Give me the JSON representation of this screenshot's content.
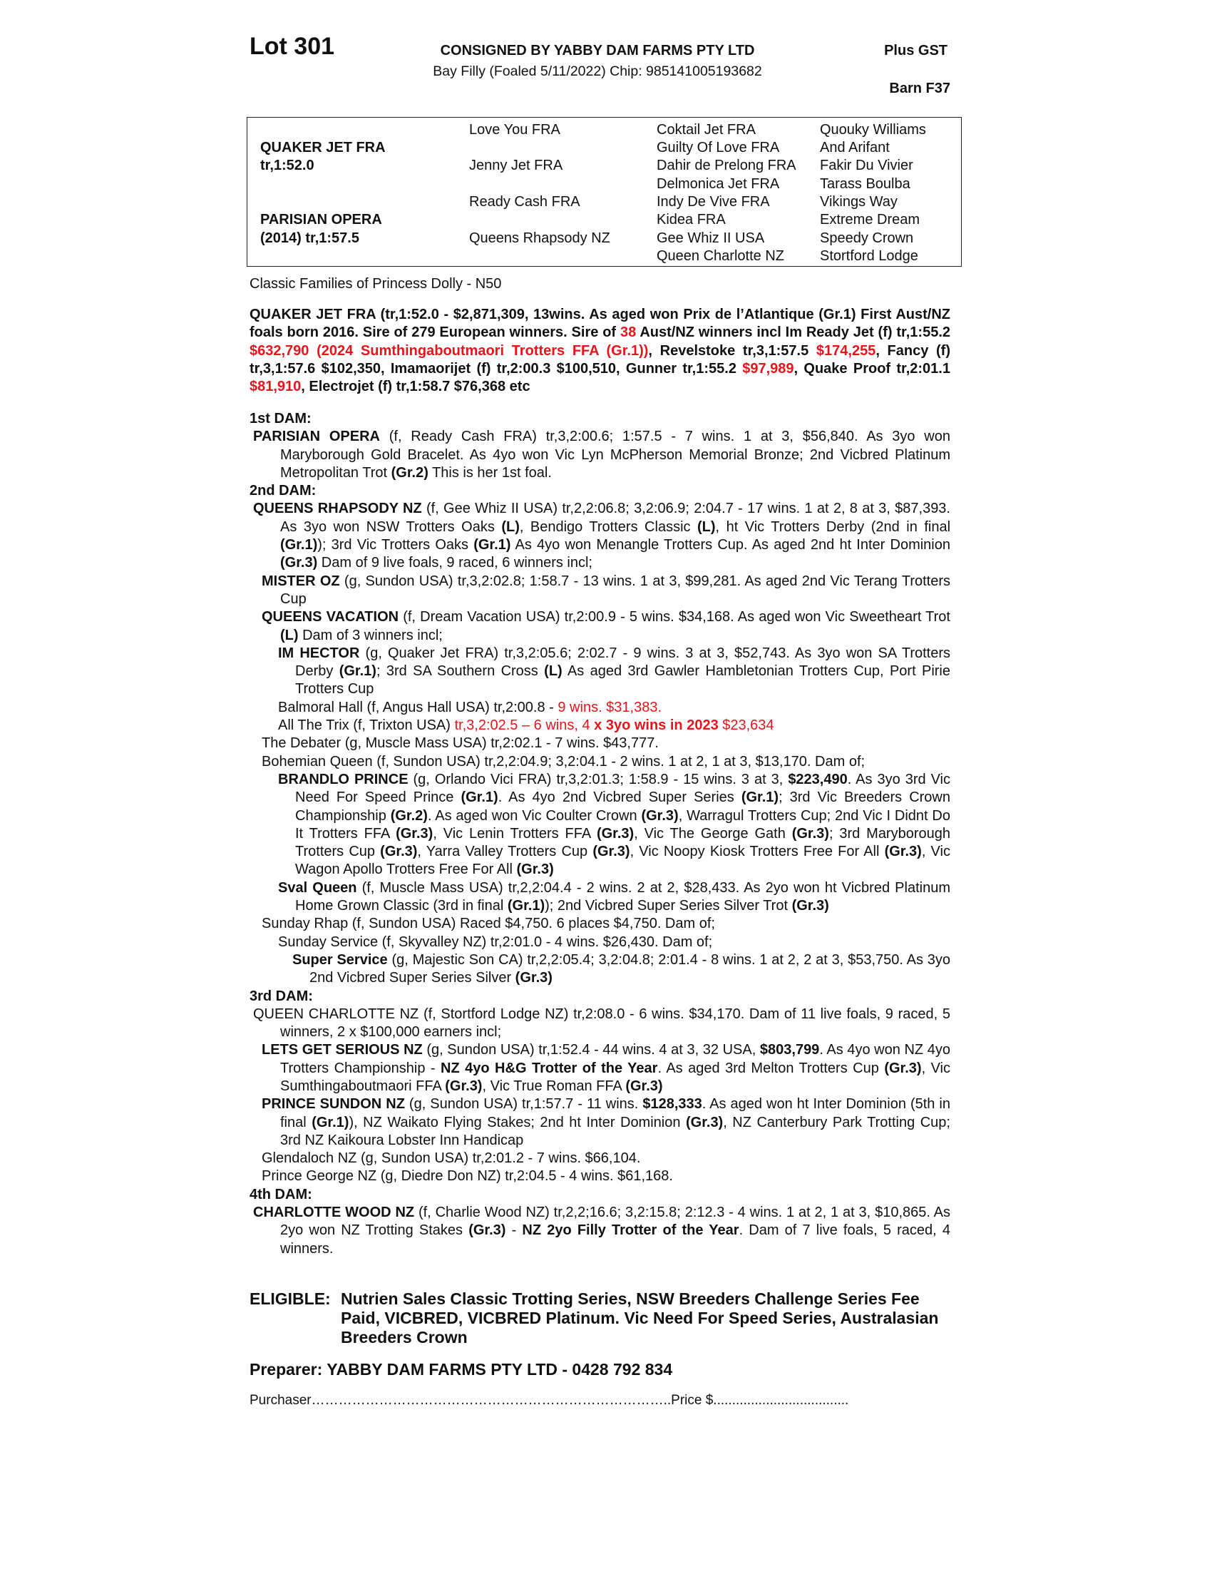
{
  "header": {
    "lot": "Lot 301",
    "consigned": "CONSIGNED BY YABBY DAM FARMS PTY LTD",
    "description": "Bay Filly (Foaled  5/11/2022) Chip: 985141005193682",
    "gst": "Plus GST",
    "barn": "Barn F37"
  },
  "pedigree": {
    "sire_name": "QUAKER JET FRA",
    "sire_record": "tr,1:52.0",
    "dam_name": "PARISIAN OPERA",
    "dam_record": "(2014) tr,1:57.5",
    "gen2": [
      "Love You FRA",
      "Jenny Jet FRA",
      "Ready Cash FRA",
      "Queens Rhapsody NZ"
    ],
    "gen3": [
      "Coktail Jet FRA",
      "Guilty Of Love FRA",
      "Dahir de Prelong FRA",
      "Delmonica Jet FRA",
      "Indy De Vive FRA",
      "Kidea FRA",
      "Gee Whiz II USA",
      "Queen Charlotte NZ"
    ],
    "gen4": [
      "Quouky Williams",
      "And Arifant",
      "Fakir Du Vivier",
      "Tarass Boulba",
      "Vikings Way",
      "Extreme Dream",
      "Speedy Crown",
      "Stortford Lodge"
    ]
  },
  "family": "Classic Families of Princess Dolly - N50",
  "sire_para": [
    {
      "t": "QUAKER JET FRA (tr,1:52.0 - $2,871,309, 13wins. As aged won Prix de l’Atlantique (Gr.1) First Aust/NZ foals born 2016. Sire of 279 European winners. Sire of ",
      "s": ""
    },
    {
      "t": "38",
      "s": "r"
    },
    {
      "t": " Aust/NZ winners incl Im Ready Jet (f) tr,1:55.2 ",
      "s": ""
    },
    {
      "t": "$632,790 (2024 Sumthingaboutmaori Trotters FFA (Gr.1))",
      "s": "r"
    },
    {
      "t": ", Revelstoke tr,3,1:57.5 ",
      "s": ""
    },
    {
      "t": "$174,255",
      "s": "r"
    },
    {
      "t": ", Fancy (f) tr,3,1:57.6 $102,350, Imamaorijet (f) tr,2:00.3 $100,510, Gunner tr,1:55.2 ",
      "s": ""
    },
    {
      "t": "$97,989",
      "s": "r"
    },
    {
      "t": ", Quake Proof tr,2:01.1 ",
      "s": ""
    },
    {
      "t": "$81,910",
      "s": "r"
    },
    {
      "t": ",  Electrojet (f) tr,1:58.7 $76,368 etc",
      "s": ""
    }
  ],
  "dams": [
    {
      "heading": "1st DAM:",
      "entries": [
        {
          "level": 1,
          "runs": [
            {
              "t": "PARISIAN OPERA",
              "s": "b"
            },
            {
              "t": " (f, Ready Cash FRA) tr,3,2:00.6; 1:57.5 - 7 wins. 1 at 3, $56,840. As 3yo won Maryborough Gold Bracelet. As 4yo won Vic Lyn McPherson Memorial Bronze; 2nd Vicbred Platinum Metropolitan Trot ",
              "s": ""
            },
            {
              "t": "(Gr.2)",
              "s": "b"
            },
            {
              "t": " This is her 1st foal.",
              "s": ""
            }
          ]
        }
      ]
    },
    {
      "heading": "2nd DAM:",
      "entries": [
        {
          "level": 1,
          "runs": [
            {
              "t": "QUEENS RHAPSODY NZ",
              "s": "b"
            },
            {
              "t": " (f, Gee Whiz II USA) tr,2,2:06.8; 3,2:06.9; 2:04.7 - 17 wins. 1 at 2, 8 at 3, $87,393. As 3yo won NSW Trotters Oaks ",
              "s": ""
            },
            {
              "t": "(L)",
              "s": "b"
            },
            {
              "t": ", Bendigo Trotters Classic ",
              "s": ""
            },
            {
              "t": "(L)",
              "s": "b"
            },
            {
              "t": ", ht Vic Trotters Derby (2nd in final ",
              "s": ""
            },
            {
              "t": "(Gr.1)",
              "s": "b"
            },
            {
              "t": "); 3rd Vic Trotters Oaks ",
              "s": ""
            },
            {
              "t": "(Gr.1)",
              "s": "b"
            },
            {
              "t": " As 4yo won Menangle Trotters Cup. As aged 2nd ht Inter Dominion ",
              "s": ""
            },
            {
              "t": "(Gr.3)",
              "s": "b"
            },
            {
              "t": " Dam of 9 live foals, 9 raced, 6 winners incl;",
              "s": ""
            }
          ]
        },
        {
          "level": 2,
          "runs": [
            {
              "t": "MISTER OZ",
              "s": "b"
            },
            {
              "t": " (g, Sundon USA) tr,3,2:02.8; 1:58.7 - 13 wins. 1 at 3, $99,281. As aged 2nd Vic Terang Trotters Cup",
              "s": ""
            }
          ]
        },
        {
          "level": 2,
          "runs": [
            {
              "t": "QUEENS VACATION",
              "s": "b"
            },
            {
              "t": " (f, Dream Vacation USA) tr,2:00.9 - 5 wins. $34,168. As aged won Vic Sweetheart Trot ",
              "s": ""
            },
            {
              "t": "(L)",
              "s": "b"
            },
            {
              "t": " Dam of 3 winners incl;",
              "s": ""
            }
          ]
        },
        {
          "level": 3,
          "runs": [
            {
              "t": "IM HECTOR",
              "s": "b"
            },
            {
              "t": " (g, Quaker Jet FRA) tr,3,2:05.6; 2:02.7 - 9 wins. 3 at 3, $52,743. As 3yo won SA Trotters Derby ",
              "s": ""
            },
            {
              "t": "(Gr.1)",
              "s": "b"
            },
            {
              "t": "; 3rd SA Southern Cross ",
              "s": ""
            },
            {
              "t": "(L)",
              "s": "b"
            },
            {
              "t": " As aged 3rd Gawler Hambletonian Trotters Cup, Port Pirie Trotters Cup",
              "s": ""
            }
          ]
        },
        {
          "level": 3,
          "runs": [
            {
              "t": "Balmoral Hall (f, Angus Hall USA) tr,2:00.8 - ",
              "s": ""
            },
            {
              "t": "9 wins. $31,383.",
              "s": "r"
            }
          ]
        },
        {
          "level": 3,
          "runs": [
            {
              "t": "All The Trix (f, Trixton USA) ",
              "s": ""
            },
            {
              "t": "tr,3,2:02.5 – 6 wins, 4 ",
              "s": "r"
            },
            {
              "t": "x 3yo wins in 2023",
              "s": "rb"
            },
            {
              "t": " $23,634",
              "s": "r"
            }
          ]
        },
        {
          "level": 2,
          "runs": [
            {
              "t": "The Debater (g, Muscle Mass USA) tr,2:02.1 - 7 wins. $43,777.",
              "s": ""
            }
          ]
        },
        {
          "level": 2,
          "runs": [
            {
              "t": "Bohemian Queen (f, Sundon USA) tr,2,2:04.9; 3,2:04.1 - 2 wins. 1 at 2, 1 at 3, $13,170. Dam of;",
              "s": ""
            }
          ]
        },
        {
          "level": 3,
          "runs": [
            {
              "t": "BRANDLO PRINCE",
              "s": "b"
            },
            {
              "t": " (g, Orlando Vici FRA) tr,3,2:01.3; 1:58.9 - 15 wins. 3 at 3, ",
              "s": ""
            },
            {
              "t": "$223,490",
              "s": "b"
            },
            {
              "t": ". As 3yo 3rd Vic Need For Speed Prince ",
              "s": ""
            },
            {
              "t": "(Gr.1)",
              "s": "b"
            },
            {
              "t": ". As 4yo 2nd Vicbred Super Series ",
              "s": ""
            },
            {
              "t": "(Gr.1)",
              "s": "b"
            },
            {
              "t": "; 3rd Vic Breeders Crown Championship ",
              "s": ""
            },
            {
              "t": "(Gr.2)",
              "s": "b"
            },
            {
              "t": ". As aged won Vic Coulter Crown ",
              "s": ""
            },
            {
              "t": "(Gr.3)",
              "s": "b"
            },
            {
              "t": ", Warragul Trotters Cup; 2nd Vic I Didnt Do It Trotters FFA ",
              "s": ""
            },
            {
              "t": "(Gr.3)",
              "s": "b"
            },
            {
              "t": ", Vic Lenin Trotters FFA ",
              "s": ""
            },
            {
              "t": "(Gr.3)",
              "s": "b"
            },
            {
              "t": ", Vic The George Gath ",
              "s": ""
            },
            {
              "t": "(Gr.3)",
              "s": "b"
            },
            {
              "t": "; 3rd Maryborough Trotters Cup ",
              "s": ""
            },
            {
              "t": "(Gr.3)",
              "s": "b"
            },
            {
              "t": ", Yarra Valley Trotters Cup ",
              "s": ""
            },
            {
              "t": "(Gr.3)",
              "s": "b"
            },
            {
              "t": ", Vic Noopy Kiosk Trotters Free For All ",
              "s": ""
            },
            {
              "t": "(Gr.3)",
              "s": "b"
            },
            {
              "t": ", Vic Wagon Apollo Trotters Free For All ",
              "s": ""
            },
            {
              "t": "(Gr.3)",
              "s": "b"
            }
          ]
        },
        {
          "level": 3,
          "runs": [
            {
              "t": "Sval Queen",
              "s": "b"
            },
            {
              "t": " (f, Muscle Mass USA) tr,2,2:04.4 - 2 wins. 2 at 2, $28,433. As 2yo won ht Vicbred Platinum Home Grown Classic (3rd in final ",
              "s": ""
            },
            {
              "t": "(Gr.1)",
              "s": "b"
            },
            {
              "t": "); 2nd Vicbred Super Series Silver Trot ",
              "s": ""
            },
            {
              "t": "(Gr.3)",
              "s": "b"
            }
          ]
        },
        {
          "level": 2,
          "runs": [
            {
              "t": "Sunday Rhap (f, Sundon USA) Raced $4,750. 6 places $4,750. Dam of;",
              "s": ""
            }
          ]
        },
        {
          "level": 3,
          "runs": [
            {
              "t": "Sunday Service (f, Skyvalley NZ) tr,2:01.0 - 4 wins. $26,430. Dam of;",
              "s": ""
            }
          ]
        },
        {
          "level": 4,
          "runs": [
            {
              "t": "Super Service",
              "s": "b"
            },
            {
              "t": " (g, Majestic Son CA) tr,2,2:05.4; 3,2:04.8; 2:01.4 - 8 wins. 1 at 2, 2 at 3, $53,750. As 3yo 2nd Vicbred Super Series Silver ",
              "s": ""
            },
            {
              "t": "(Gr.3)",
              "s": "b"
            }
          ]
        }
      ]
    },
    {
      "heading": "3rd DAM:",
      "entries": [
        {
          "level": 1,
          "runs": [
            {
              "t": "QUEEN CHARLOTTE NZ (f, Stortford Lodge NZ) tr,2:08.0 - 6 wins. $34,170. Dam of 11 live foals, 9 raced, 5 winners, 2 x $100,000 earners incl;",
              "s": ""
            }
          ]
        },
        {
          "level": 2,
          "runs": [
            {
              "t": "LETS GET SERIOUS NZ",
              "s": "b"
            },
            {
              "t": " (g, Sundon USA) tr,1:52.4 - 44 wins. 4 at 3, 32 USA, ",
              "s": ""
            },
            {
              "t": "$803,799",
              "s": "b"
            },
            {
              "t": ". As 4yo won NZ 4yo Trotters Championship - ",
              "s": ""
            },
            {
              "t": "NZ 4yo H&G Trotter of the Year",
              "s": "b"
            },
            {
              "t": ". As aged 3rd Melton Trotters Cup ",
              "s": ""
            },
            {
              "t": "(Gr.3)",
              "s": "b"
            },
            {
              "t": ", Vic Sumthingaboutmaori FFA ",
              "s": ""
            },
            {
              "t": "(Gr.3)",
              "s": "b"
            },
            {
              "t": ", Vic True Roman FFA ",
              "s": ""
            },
            {
              "t": "(Gr.3)",
              "s": "b"
            }
          ]
        },
        {
          "level": 2,
          "runs": [
            {
              "t": "PRINCE SUNDON NZ",
              "s": "b"
            },
            {
              "t": " (g, Sundon USA) tr,1:57.7 - 11 wins. ",
              "s": ""
            },
            {
              "t": "$128,333",
              "s": "b"
            },
            {
              "t": ". As aged won ht Inter Dominion (5th in final ",
              "s": ""
            },
            {
              "t": "(Gr.1)",
              "s": "b"
            },
            {
              "t": "), NZ Waikato Flying Stakes; 2nd ht Inter Dominion ",
              "s": ""
            },
            {
              "t": "(Gr.3)",
              "s": "b"
            },
            {
              "t": ", NZ Canterbury Park Trotting Cup; 3rd NZ Kaikoura Lobster Inn Handicap",
              "s": ""
            }
          ]
        },
        {
          "level": 2,
          "runs": [
            {
              "t": "Glendaloch NZ (g, Sundon USA) tr,2:01.2 - 7 wins. $66,104.",
              "s": ""
            }
          ]
        },
        {
          "level": 2,
          "runs": [
            {
              "t": "Prince George NZ (g, Diedre Don NZ) tr,2:04.5 - 4 wins. $61,168.",
              "s": ""
            }
          ]
        }
      ]
    },
    {
      "heading": "4th DAM:",
      "entries": [
        {
          "level": 1,
          "runs": [
            {
              "t": "CHARLOTTE WOOD NZ",
              "s": "b"
            },
            {
              "t": " (f, Charlie Wood NZ) tr,2,2;16.6; 3,2:15.8; 2:12.3 - 4 wins. 1 at 2, 1 at 3, $10,865. As 2yo won NZ Trotting Stakes ",
              "s": ""
            },
            {
              "t": "(Gr.3)",
              "s": "b"
            },
            {
              "t": " - ",
              "s": ""
            },
            {
              "t": "NZ 2yo Filly Trotter of the Year",
              "s": "b"
            },
            {
              "t": ". Dam of 7 live foals, 5 raced, 4 winners.",
              "s": ""
            }
          ]
        }
      ]
    }
  ],
  "eligible": {
    "label": "ELIGIBLE:",
    "text": "Nutrien Sales Classic Trotting Series, NSW Breeders Challenge Series Fee Paid, VICBRED, VICBRED Platinum. Vic Need For Speed Series, Australasian Breeders Crown"
  },
  "preparer": "Preparer: YABBY DAM FARMS PTY LTD - 0428 792 834",
  "purchaser": "Purchaser……………………………………………………………………..Price $....................................",
  "colors": {
    "highlight_red": "#e8141b",
    "text": "#111111"
  }
}
